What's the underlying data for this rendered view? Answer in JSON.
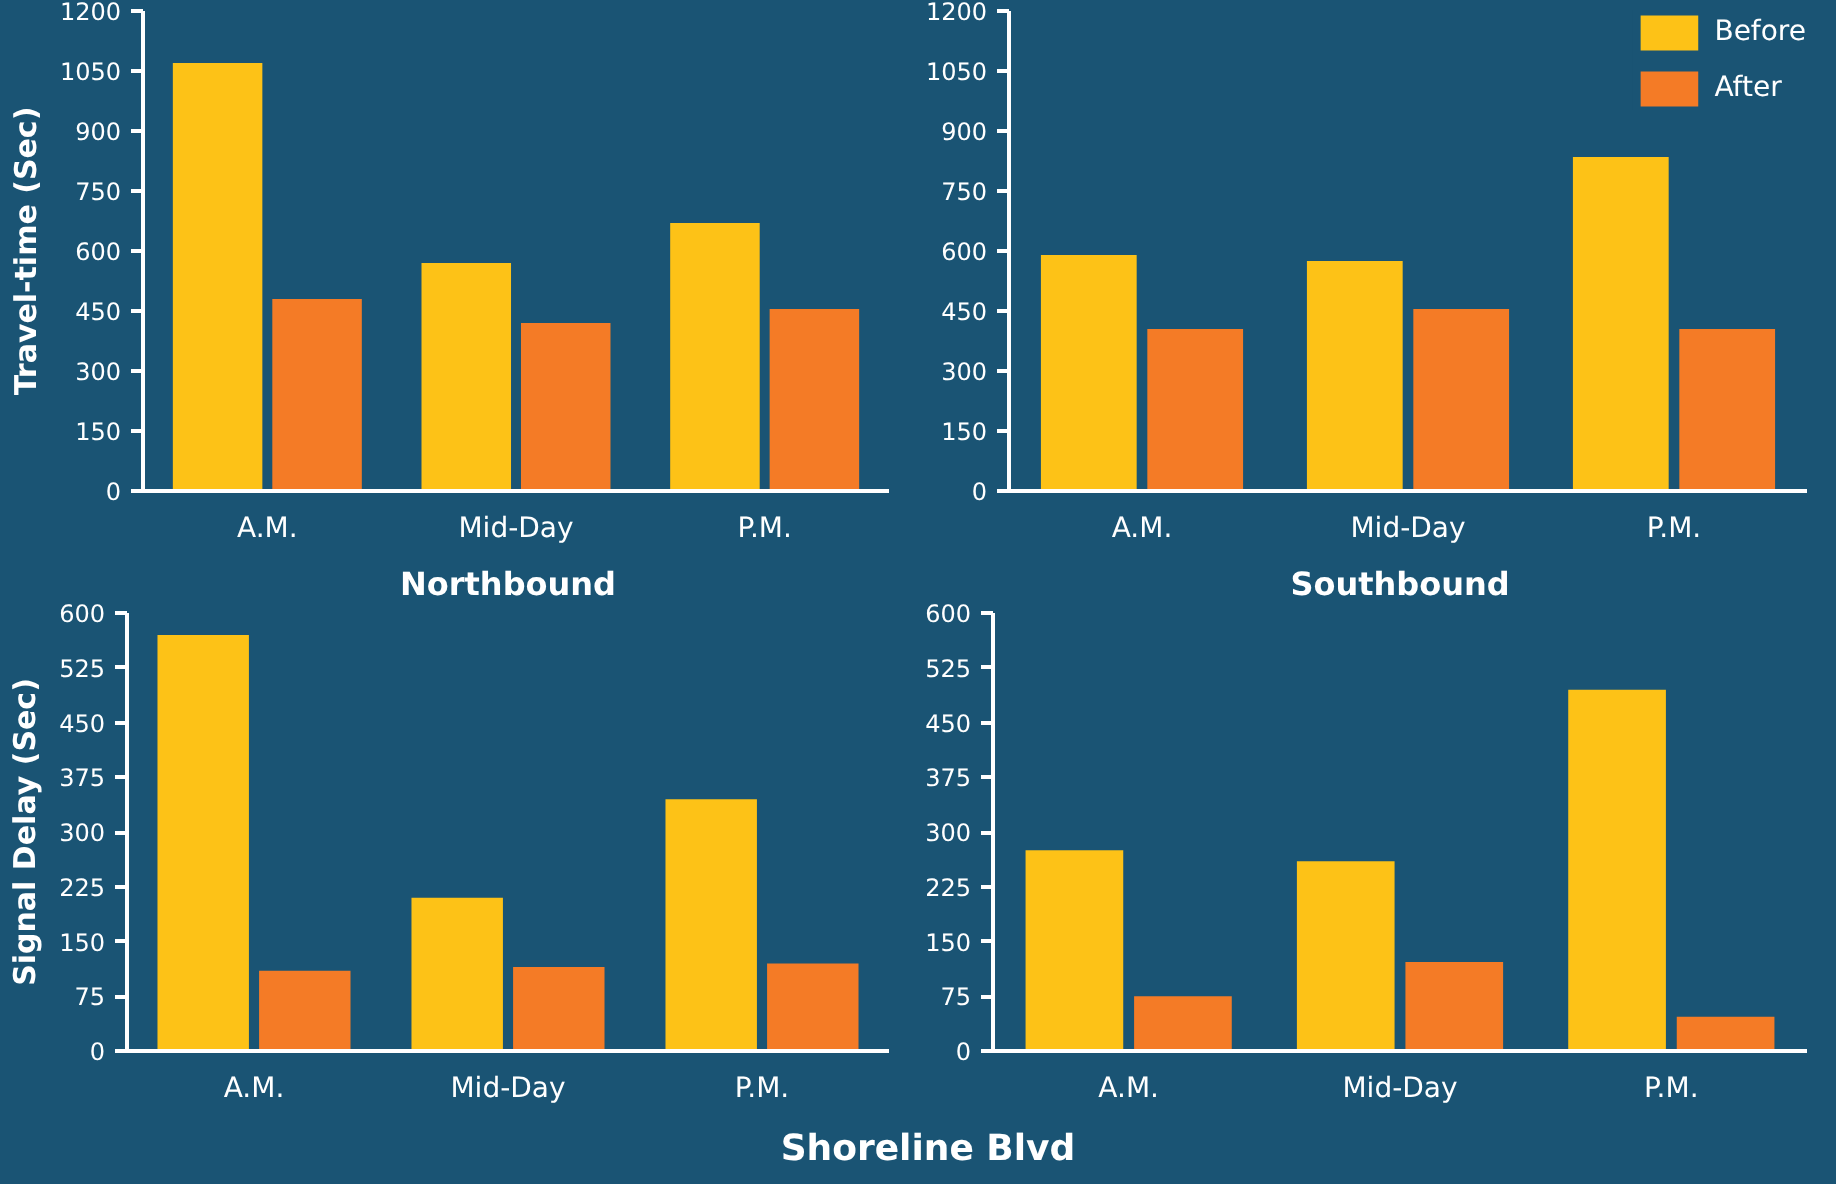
{
  "chart_data": [
    {
      "type": "bar",
      "ylabel": "Travel-time (Sec)",
      "categories": [
        "A.M.",
        "Mid-Day",
        "P.M."
      ],
      "ylim": [
        0,
        1200
      ],
      "yticks": [
        0,
        150,
        300,
        450,
        600,
        750,
        900,
        1050,
        1200
      ],
      "series": [
        {
          "color": "#fdc217",
          "values": [
            1070,
            570,
            670
          ]
        },
        {
          "color": "#f47b26",
          "values": [
            480,
            420,
            455
          ]
        }
      ]
    },
    {
      "type": "bar",
      "categories": [
        "A.M.",
        "Mid-Day",
        "P.M."
      ],
      "ylim": [
        0,
        1200
      ],
      "yticks": [
        0,
        150,
        300,
        450,
        600,
        750,
        900,
        1050,
        1200
      ],
      "legend": "top right",
      "series": [
        {
          "name": "Before",
          "color": "#fdc217",
          "values": [
            590,
            575,
            835
          ]
        },
        {
          "name": "After",
          "color": "#f47b26",
          "values": [
            405,
            455,
            405
          ]
        }
      ]
    },
    {
      "type": "bar",
      "title": "Northbound",
      "ylabel": "Signal Delay (Sec)",
      "categories": [
        "A.M.",
        "Mid-Day",
        "P.M."
      ],
      "ylim": [
        0,
        600
      ],
      "yticks": [
        0,
        75,
        150,
        225,
        300,
        375,
        450,
        525,
        600
      ],
      "series": [
        {
          "color": "#fdc217",
          "values": [
            570,
            210,
            345
          ]
        },
        {
          "color": "#f47b26",
          "values": [
            110,
            115,
            120
          ]
        }
      ]
    },
    {
      "type": "bar",
      "title": "Southbound",
      "categories": [
        "A.M.",
        "Mid-Day",
        "P.M."
      ],
      "ylim": [
        0,
        600
      ],
      "yticks": [
        0,
        75,
        150,
        225,
        300,
        375,
        450,
        525,
        600
      ],
      "annotations": [
        "Shoreline Blvd"
      ],
      "series": [
        {
          "color": "#fdc217",
          "values": [
            275,
            260,
            495
          ]
        },
        {
          "color": "#f47b26",
          "values": [
            75,
            122,
            47
          ]
        }
      ]
    }
  ]
}
